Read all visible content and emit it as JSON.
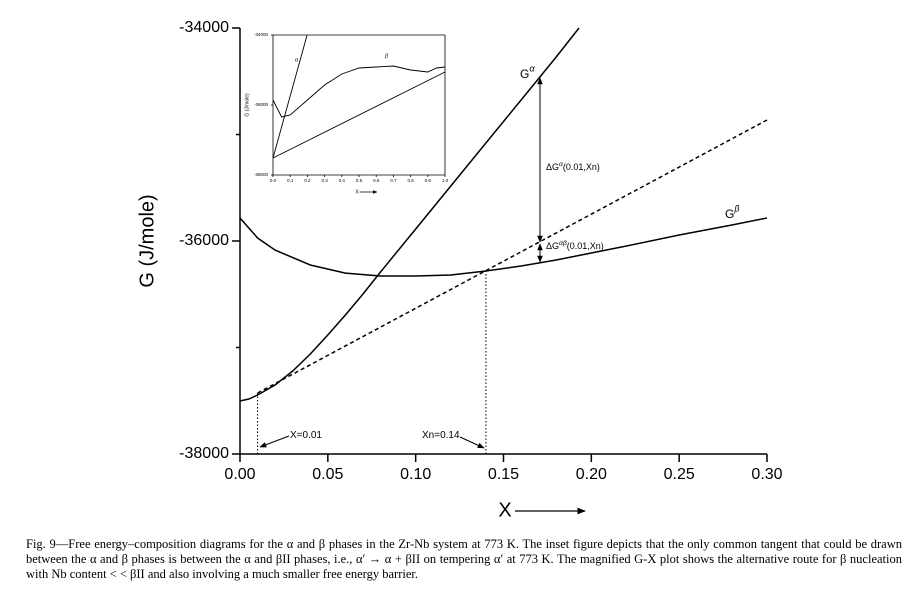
{
  "chart_data": [
    {
      "type": "line",
      "ylabel": "G (J/mole)",
      "xlabel": "X",
      "xlim": [
        0,
        0.3
      ],
      "ylim": [
        -38000,
        -34000
      ],
      "xticks": [
        {
          "value": 0,
          "label": "0.00"
        },
        {
          "value": 0.05,
          "label": "0.05"
        },
        {
          "value": 0.1,
          "label": "0.10"
        },
        {
          "value": 0.15,
          "label": "0.15"
        },
        {
          "value": 0.2,
          "label": "0.20"
        },
        {
          "value": 0.25,
          "label": "0.25"
        },
        {
          "value": 0.3,
          "label": "0.30"
        }
      ],
      "yticks": [
        -38000,
        -36000,
        -34000
      ],
      "yticks_minor": [
        -37000,
        -35000
      ],
      "series": [
        {
          "color": "#000000",
          "style": "solid",
          "x": [
            0,
            0.005,
            0.01,
            0.02,
            0.03,
            0.04,
            0.05,
            0.06,
            0.07,
            0.08,
            0.1,
            0.12,
            0.14,
            0.16,
            0.18,
            0.193
          ],
          "values": [
            -37502,
            -37484,
            -37446,
            -37352,
            -37221,
            -37061,
            -36883,
            -36695,
            -36498,
            -36291,
            -35887,
            -35484,
            -35080,
            -34676,
            -34272,
            -34000
          ]
        },
        {
          "color": "#000000",
          "style": "solid",
          "x": [
            0,
            0.01,
            0.02,
            0.04,
            0.06,
            0.08,
            0.1,
            0.12,
            0.14,
            0.16,
            0.18,
            0.2,
            0.22,
            0.25,
            0.28,
            0.3
          ],
          "values": [
            -35784,
            -35972,
            -36085,
            -36225,
            -36301,
            -36329,
            -36329,
            -36319,
            -36282,
            -36235,
            -36178,
            -36113,
            -36047,
            -35944,
            -35850,
            -35784
          ]
        },
        {
          "color": "#000000",
          "style": "dashed",
          "x": [
            0.01,
            0.3
          ],
          "values": [
            -37427,
            -34864
          ]
        }
      ],
      "vlines": [
        0.01,
        0.14
      ],
      "annotations": [
        {
          "text": "X=0.01"
        },
        {
          "text": "Xn=0.14"
        },
        {
          "text": "G",
          "sup": "α"
        },
        {
          "text": "G",
          "sup": "β"
        },
        {
          "text": "ΔG",
          "sup": "α",
          "tail": "(0.01,Xn)"
        },
        {
          "text": "ΔG",
          "sup": "αβ",
          "tail": "(0.01,Xn)"
        }
      ]
    },
    {
      "type": "line",
      "ylabel": "G (J/mole)",
      "xlabel": "X",
      "xlim": [
        0,
        1
      ],
      "ylim": [
        -38000,
        -34000
      ],
      "xticks": [
        {
          "value": 0,
          "label": "0.0"
        },
        {
          "value": 0.1,
          "label": "0.1"
        },
        {
          "value": 0.2,
          "label": "0.2"
        },
        {
          "value": 0.3,
          "label": "0.3"
        },
        {
          "value": 0.4,
          "label": "0.4"
        },
        {
          "value": 0.5,
          "label": "0.5"
        },
        {
          "value": 0.6,
          "label": "0.6"
        },
        {
          "value": 0.7,
          "label": "0.7"
        },
        {
          "value": 0.8,
          "label": "0.8"
        },
        {
          "value": 0.9,
          "label": "0.9"
        },
        {
          "value": 1,
          "label": "1.0"
        }
      ],
      "yticks": [
        -38000,
        -36000,
        -34000
      ],
      "series": [
        {
          "name": "α",
          "color": "#000000",
          "style": "solid",
          "x": [
            0,
            0.198
          ],
          "values": [
            -37514,
            -34000
          ]
        },
        {
          "name": "β",
          "color": "#000000",
          "style": "solid",
          "x": [
            0,
            0.05,
            0.1,
            0.2,
            0.3,
            0.4,
            0.5,
            0.6,
            0.7,
            0.8,
            0.9,
            0.95,
            1
          ],
          "values": [
            -35857,
            -36343,
            -36286,
            -35857,
            -35429,
            -35114,
            -34943,
            -34914,
            -34886,
            -35000,
            -35057,
            -34943,
            -34914
          ]
        },
        {
          "color": "#000000",
          "style": "solid",
          "x": [
            0,
            1
          ],
          "values": [
            -37514,
            -35057
          ]
        }
      ]
    }
  ],
  "caption": "Fig. 9—Free energy–composition diagrams for the α and β phases in the Zr-Nb system at 773 K. The inset figure depicts that the only common tangent that could be drawn between the α and β phases is between the α and βII phases, i.e., α′ → α + βII on tempering α′ at 773 K. The magnified G-X plot shows the alternative route for β nucleation with Nb content < < βII and also involving a much smaller free energy barrier."
}
